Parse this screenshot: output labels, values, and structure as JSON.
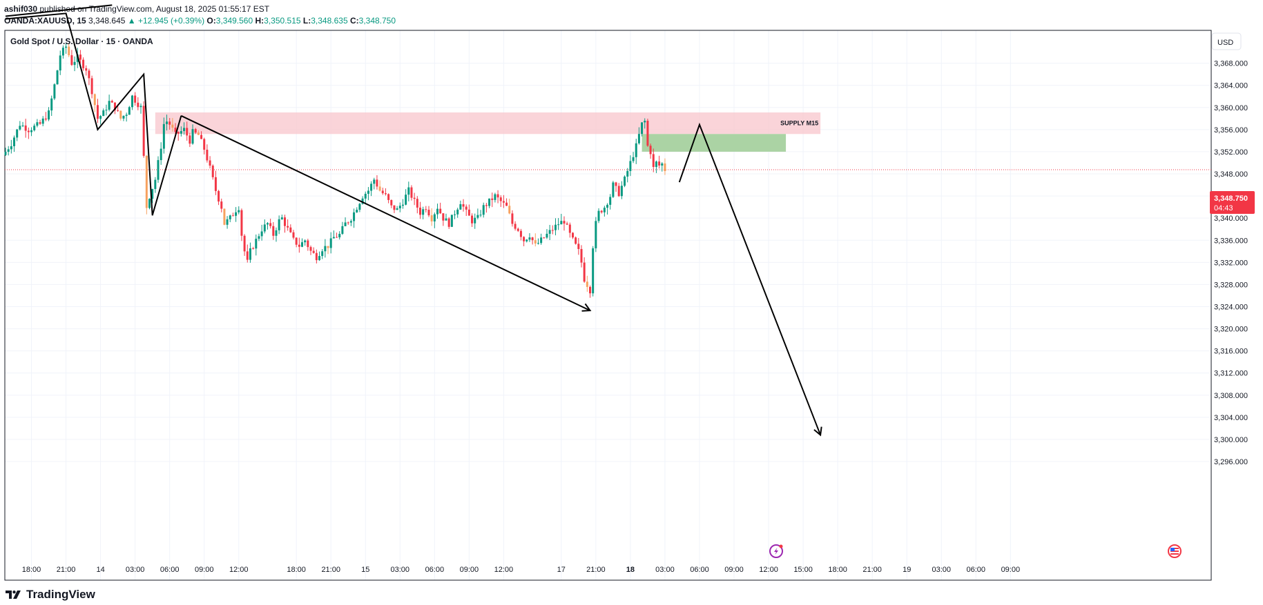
{
  "header": {
    "author": "ashif030",
    "published_text": "published on TradingView.com, August 18, 2025 01:55:17 EST",
    "symbol": "OANDA:XAUUSD, 15",
    "price": "3,348.645",
    "change": "+12.945 (+0.39%)",
    "o_label": "O:",
    "o_value": "3,349.560",
    "h_label": "H:",
    "h_value": "3,350.515",
    "l_label": "L:",
    "l_value": "3,348.635",
    "c_label": "C:",
    "c_value": "3,348.750"
  },
  "chart_title": "Gold Spot / U.S. Dollar · 15 · OANDA",
  "currency_button": "USD",
  "price_tag": {
    "value": "3,348.750",
    "countdown": "04:43"
  },
  "footer": {
    "logo_text": "TradingView"
  },
  "colors": {
    "up": "#089981",
    "down": "#f23645",
    "drawn_down": "#f7a15e",
    "supply_zone": "#f9c9cf",
    "green_zone": "#a7d19f",
    "price_tag": "#f23645",
    "grid": "#f0f3fa",
    "lightning_icon": "#9c27b0"
  },
  "chart_data": {
    "type": "candlestick",
    "title": "Gold Spot / U.S. Dollar · 15 · OANDA",
    "yticks": [
      3296,
      3300,
      3304,
      3308,
      3312,
      3316,
      3320,
      3324,
      3328,
      3332,
      3336,
      3340,
      3344,
      3348,
      3352,
      3356,
      3360,
      3364,
      3368
    ],
    "ytick_labels": [
      "3,296.000",
      "3,300.000",
      "3,304.000",
      "3,308.000",
      "3,312.000",
      "3,316.000",
      "3,320.000",
      "3,324.000",
      "3,328.000",
      "3,332.000",
      "3,336.000",
      "3,340.000",
      "3,344.000",
      "3,348.000",
      "3,352.000",
      "3,356.000",
      "3,360.000",
      "3,364.000",
      "3,368.000"
    ],
    "xticks": [
      {
        "label": "18:00",
        "t": 9
      },
      {
        "label": "21:00",
        "t": 21
      },
      {
        "label": "14",
        "t": 33,
        "bold": false
      },
      {
        "label": "03:00",
        "t": 45
      },
      {
        "label": "06:00",
        "t": 57
      },
      {
        "label": "09:00",
        "t": 69
      },
      {
        "label": "12:00",
        "t": 81
      },
      {
        "label": "18:00",
        "t": 101
      },
      {
        "label": "21:00",
        "t": 113
      },
      {
        "label": "15",
        "t": 125
      },
      {
        "label": "03:00",
        "t": 137
      },
      {
        "label": "06:00",
        "t": 149
      },
      {
        "label": "09:00",
        "t": 161
      },
      {
        "label": "12:00",
        "t": 173
      },
      {
        "label": "17",
        "t": 193
      },
      {
        "label": "21:00",
        "t": 205
      },
      {
        "label": "18",
        "t": 217,
        "bold": true
      },
      {
        "label": "03:00",
        "t": 229
      },
      {
        "label": "06:00",
        "t": 241
      },
      {
        "label": "09:00",
        "t": 253
      },
      {
        "label": "12:00",
        "t": 265
      },
      {
        "label": "15:00",
        "t": 277
      },
      {
        "label": "18:00",
        "t": 289
      },
      {
        "label": "21:00",
        "t": 301
      },
      {
        "label": "19",
        "t": 313
      },
      {
        "label": "03:00",
        "t": 325
      },
      {
        "label": "06:00",
        "t": 337
      },
      {
        "label": "09:00",
        "t": 349
      }
    ],
    "keypoints": [
      [
        0,
        3352
      ],
      [
        2,
        3353.5
      ],
      [
        5,
        3357
      ],
      [
        8,
        3356
      ],
      [
        12,
        3357
      ],
      [
        15,
        3359
      ],
      [
        17,
        3364
      ],
      [
        19,
        3369.5
      ],
      [
        21,
        3371
      ],
      [
        23,
        3368
      ],
      [
        25,
        3369
      ],
      [
        28,
        3367
      ],
      [
        30,
        3363
      ],
      [
        32,
        3358
      ],
      [
        34,
        3359
      ],
      [
        36,
        3361
      ],
      [
        38,
        3360
      ],
      [
        40,
        3358
      ],
      [
        42,
        3359
      ],
      [
        44,
        3362
      ],
      [
        47,
        3360
      ],
      [
        48,
        3351
      ],
      [
        49,
        3342
      ],
      [
        50,
        3344
      ],
      [
        52,
        3347
      ],
      [
        54,
        3353
      ],
      [
        55,
        3357
      ],
      [
        56,
        3357.5
      ],
      [
        57,
        3357
      ],
      [
        59,
        3355
      ],
      [
        62,
        3356
      ],
      [
        64,
        3354
      ],
      [
        65,
        3355.5
      ],
      [
        67,
        3355
      ],
      [
        69,
        3352.5
      ],
      [
        71,
        3349
      ],
      [
        73,
        3345
      ],
      [
        75,
        3342
      ],
      [
        76,
        3339
      ],
      [
        78,
        3340
      ],
      [
        80,
        3341.5
      ],
      [
        81,
        3342
      ],
      [
        82,
        3337
      ],
      [
        83,
        3334
      ],
      [
        84,
        3332
      ],
      [
        85,
        3334
      ],
      [
        87,
        3336
      ],
      [
        89,
        3338
      ],
      [
        91,
        3339
      ],
      [
        93,
        3337
      ],
      [
        95,
        3339.5
      ],
      [
        96,
        3340
      ],
      [
        98,
        3338
      ],
      [
        100,
        3336
      ],
      [
        102,
        3335
      ],
      [
        104,
        3336
      ],
      [
        106,
        3334
      ],
      [
        108,
        3333
      ],
      [
        110,
        3334.5
      ],
      [
        112,
        3335
      ],
      [
        114,
        3336.5
      ],
      [
        116,
        3337
      ],
      [
        118,
        3339
      ],
      [
        120,
        3340
      ],
      [
        122,
        3342
      ],
      [
        124,
        3344
      ],
      [
        126,
        3345
      ],
      [
        128,
        3347
      ],
      [
        130,
        3345
      ],
      [
        132,
        3344
      ],
      [
        134,
        3342
      ],
      [
        136,
        3341.5
      ],
      [
        138,
        3343
      ],
      [
        140,
        3345
      ],
      [
        142,
        3343
      ],
      [
        144,
        3341
      ],
      [
        146,
        3342
      ],
      [
        148,
        3340
      ],
      [
        150,
        3342
      ],
      [
        152,
        3340
      ],
      [
        154,
        3339
      ],
      [
        156,
        3341
      ],
      [
        158,
        3343
      ],
      [
        160,
        3341
      ],
      [
        162,
        3339.5
      ],
      [
        164,
        3340
      ],
      [
        166,
        3342
      ],
      [
        168,
        3343
      ],
      [
        170,
        3344
      ],
      [
        172,
        3343
      ],
      [
        174,
        3342
      ],
      [
        176,
        3339
      ],
      [
        178,
        3338
      ],
      [
        180,
        3336
      ],
      [
        182,
        3337
      ],
      [
        184,
        3335
      ],
      [
        186,
        3336
      ],
      [
        188,
        3337
      ],
      [
        190,
        3338
      ],
      [
        192,
        3339
      ],
      [
        194,
        3339.5
      ],
      [
        196,
        3337
      ],
      [
        198,
        3335
      ],
      [
        199,
        3334
      ],
      [
        200,
        3332
      ],
      [
        201,
        3329
      ],
      [
        202,
        3328
      ],
      [
        203,
        3327
      ],
      [
        204,
        3335
      ],
      [
        205,
        3339
      ],
      [
        206,
        3341
      ],
      [
        208,
        3342
      ],
      [
        210,
        3344
      ],
      [
        211,
        3346
      ],
      [
        213,
        3344.5
      ],
      [
        215,
        3347
      ],
      [
        217,
        3350
      ],
      [
        219,
        3353
      ],
      [
        221,
        3357
      ],
      [
        222,
        3357.5
      ],
      [
        223,
        3353
      ],
      [
        224,
        3352
      ],
      [
        225,
        3349
      ],
      [
        226,
        3350
      ],
      [
        227,
        3349.5
      ],
      [
        228,
        3349.8
      ],
      [
        229,
        3348.75
      ]
    ],
    "current_price": 3348.75,
    "price_label": "3,348.750",
    "supply_zone": {
      "label": "SUPPLY M15",
      "t_start": 52,
      "t_end": 283,
      "p_low": 3355.2,
      "p_high": 3359.1
    },
    "demand_box": {
      "t_start": 221,
      "t_end": 271,
      "p_low": 3352.0,
      "p_high": 3355.2
    },
    "drawings": {
      "zigzag": [
        [
          0,
          3376
        ],
        [
          21,
          3377
        ],
        [
          32,
          3356
        ],
        [
          48,
          3366
        ],
        [
          51,
          3340.5
        ],
        [
          61,
          3358.5
        ]
      ],
      "top_line": [
        [
          0,
          3376.5
        ],
        [
          37,
          3378.5
        ]
      ],
      "trend_line": [
        [
          61,
          3358.5
        ],
        [
          203,
          3323.3
        ]
      ],
      "projection": [
        [
          234,
          3346.5
        ],
        [
          241,
          3356.9
        ],
        [
          283,
          3300.8
        ]
      ]
    },
    "grid": true,
    "legend": "none"
  }
}
